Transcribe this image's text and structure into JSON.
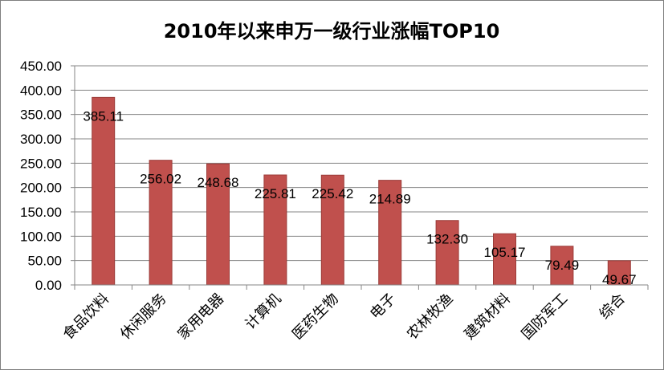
{
  "chart_data": {
    "type": "bar",
    "title": "2010年以来申万一级行业涨幅TOP10",
    "categories": [
      "食品饮料",
      "休闲服务",
      "家用电器",
      "计算机",
      "医药生物",
      "电子",
      "农林牧渔",
      "建筑材料",
      "国防军工",
      "综合"
    ],
    "values": [
      385.11,
      256.02,
      248.68,
      225.81,
      225.42,
      214.89,
      132.3,
      105.17,
      79.49,
      49.67
    ],
    "data_labels": [
      "385.11",
      "256.02",
      "248.68",
      "225.81",
      "225.42",
      "214.89",
      "132.30",
      "105.17",
      "79.49",
      "49.67"
    ],
    "y_ticks": [
      "0.00",
      "50.00",
      "100.00",
      "150.00",
      "200.00",
      "250.00",
      "300.00",
      "350.00",
      "400.00",
      "450.00"
    ],
    "ylim": [
      0,
      450
    ],
    "grid": true,
    "legend": "none",
    "colors": {
      "bar": "#c0504d",
      "bar_edge": "#9b3b38",
      "grid": "#868686",
      "axis": "#868686"
    }
  }
}
